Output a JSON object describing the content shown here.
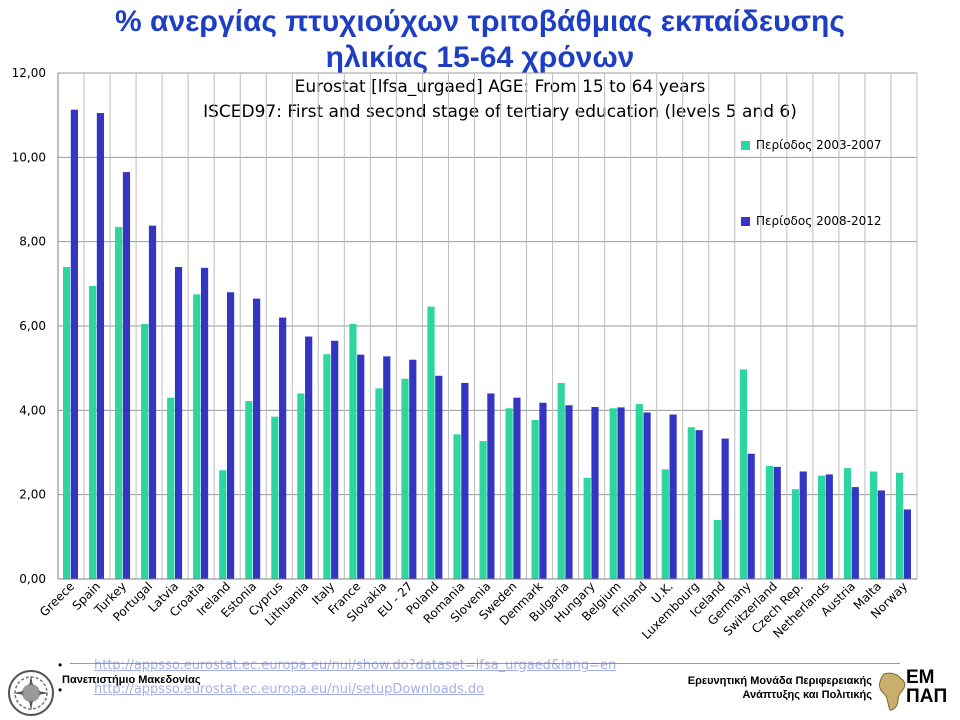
{
  "title_line1": "% ανεργίας πτυχιούχων τριτοβάθμιας εκπαίδευσης",
  "title_line2": "ηλικίας 15-64 χρόνων",
  "colors": {
    "series1": "#2dd6a0",
    "series2": "#3535c4",
    "title": "#1e3fc4"
  },
  "chart_data": {
    "type": "bar",
    "subtitle": [
      "Eurostat [lfsa_urgaed]  AGE: From 15 to 64 years",
      "ISCED97: First and second stage of tertiary education (levels 5 and 6)"
    ],
    "categories": [
      "Greece",
      "Spain",
      "Turkey",
      "Portugal",
      "Latvia",
      "Croatia",
      "Ireland",
      "Estonia",
      "Cyprus",
      "Lithuania",
      "Italy",
      "France",
      "Slovakia",
      "EU - 27",
      "Poland",
      "Romania",
      "Slovenia",
      "Sweden",
      "Denmark",
      "Bulgaria",
      "Hungary",
      "Belgium",
      "Finland",
      "U.K.",
      "Luxembourg",
      "Iceland",
      "Germany",
      "Switzerland",
      "Czech Rep.",
      "Netherlands",
      "Austria",
      "Malta",
      "Norway"
    ],
    "series": [
      {
        "name": "Περίοδος 2003-2007",
        "values": [
          7.4,
          6.95,
          8.35,
          6.05,
          4.3,
          6.75,
          2.58,
          4.22,
          3.85,
          4.4,
          5.33,
          6.05,
          4.52,
          4.75,
          6.46,
          3.43,
          3.27,
          4.05,
          3.77,
          4.65,
          2.4,
          4.05,
          4.15,
          2.6,
          3.6,
          1.4,
          4.97,
          2.68,
          2.13,
          2.45,
          2.63,
          2.55,
          2.52
        ]
      },
      {
        "name": "Περίοδος 2008-2012",
        "values": [
          11.13,
          11.05,
          9.65,
          8.38,
          7.4,
          7.38,
          6.8,
          6.65,
          6.2,
          5.75,
          5.65,
          5.32,
          5.28,
          5.2,
          4.82,
          4.65,
          4.4,
          4.3,
          4.18,
          4.12,
          4.08,
          4.07,
          3.95,
          3.9,
          3.53,
          3.33,
          2.97,
          2.66,
          2.55,
          2.48,
          2.18,
          2.1,
          1.65
        ]
      }
    ],
    "yticks": [
      "0,00",
      "2,00",
      "4,00",
      "6,00",
      "8,00",
      "10,00",
      "12,00"
    ],
    "ylim": [
      0,
      12
    ],
    "grid": true,
    "legend_position": "right"
  },
  "footer": {
    "link1": "http://appsso.eurostat.ec.europa.eu/nui/show.do?dataset=lfsa_urgaed&lang=en",
    "link2": "http://appsso.eurostat.ec.europa.eu/nui/setupDownloads.do",
    "bullet": "•",
    "university": "Πανεπιστήμιο Μακεδονίας",
    "unit_line1": "Ερευνητική Μονάδα Περιφερειακής",
    "unit_line2": "Ανάπτυξης και Πολιτικής",
    "logo_text_line1": "ΕΜ",
    "logo_text_line2": "ΠΑΠ"
  }
}
